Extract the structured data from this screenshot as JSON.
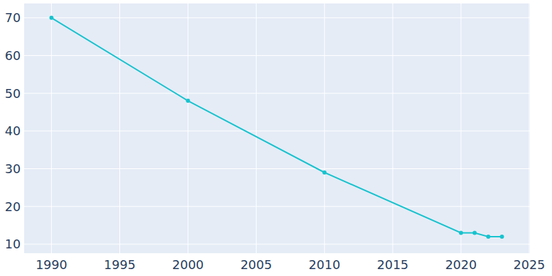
{
  "chart_data": {
    "type": "line",
    "x": [
      1990,
      2000,
      2010,
      2020,
      2021,
      2022,
      2023
    ],
    "values": [
      70,
      48,
      29,
      13,
      13,
      12,
      12
    ],
    "color": "#17c3ce",
    "marker": "circle",
    "xlim": [
      1988,
      2025.05
    ],
    "xticks": [
      1990,
      1995,
      2000,
      2005,
      2010,
      2015,
      2020,
      2025
    ],
    "ylim": [
      7.6,
      73.8
    ],
    "yticks": [
      10,
      20,
      30,
      40,
      50,
      60,
      70
    ],
    "grid": true
  }
}
